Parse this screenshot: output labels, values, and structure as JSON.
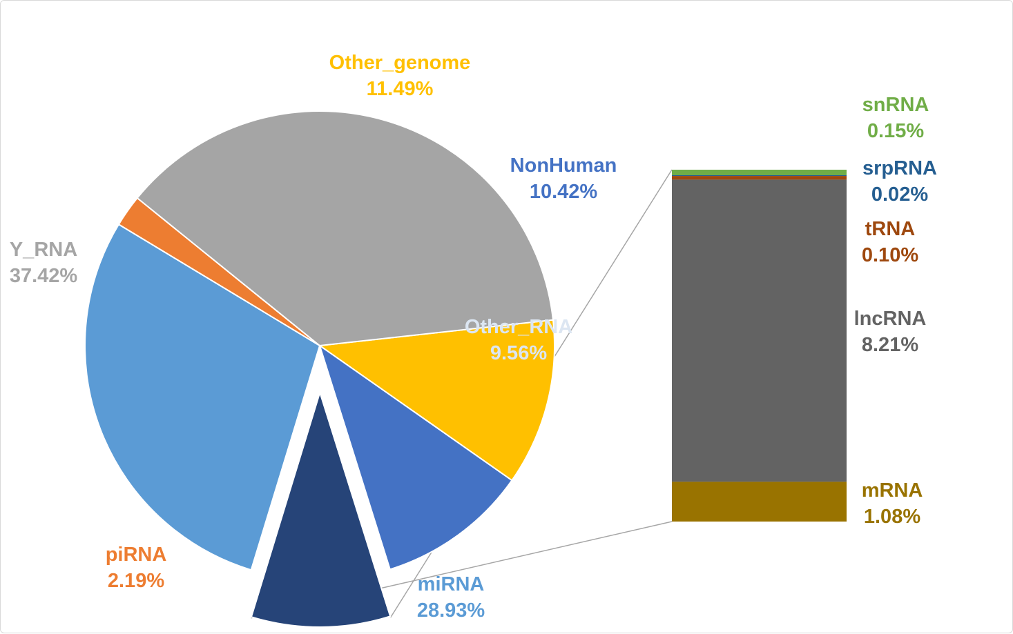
{
  "chart_data": {
    "type": "bar-of-pie",
    "pie": {
      "slices": [
        {
          "name": "Other_genome",
          "value": 11.49,
          "label": "11.49%",
          "color": "#FFC000",
          "label_color": "#FFC000"
        },
        {
          "name": "NonHuman",
          "value": 10.42,
          "label": "10.42%",
          "color": "#4472C4",
          "label_color": "#4472C4"
        },
        {
          "name": "Other_RNA",
          "value": 9.56,
          "label": "9.56%",
          "color": "#264478",
          "label_color": "#DCE6F2",
          "exploded": true
        },
        {
          "name": "miRNA",
          "value": 28.93,
          "label": "28.93%",
          "color": "#5B9BD5",
          "label_color": "#5B9BD5"
        },
        {
          "name": "piRNA",
          "value": 2.19,
          "label": "2.19%",
          "color": "#ED7D31",
          "label_color": "#ED7D31"
        },
        {
          "name": "Y_RNA",
          "value": 37.42,
          "label": "37.42%",
          "color": "#A5A5A5",
          "label_color": "#A5A5A5"
        }
      ]
    },
    "bar": {
      "breakdown_of": "Other_RNA",
      "segments": [
        {
          "name": "snRNA",
          "value": 0.15,
          "label": "0.15%",
          "color": "#70AD47",
          "label_color": "#70AD47"
        },
        {
          "name": "srpRNA",
          "value": 0.02,
          "label": "0.02%",
          "color": "#255E91",
          "label_color": "#255E91"
        },
        {
          "name": "tRNA",
          "value": 0.1,
          "label": "0.10%",
          "color": "#9E480E",
          "label_color": "#9E480E"
        },
        {
          "name": "lncRNA",
          "value": 8.21,
          "label": "8.21%",
          "color": "#636363",
          "label_color": "#636363"
        },
        {
          "name": "mRNA",
          "value": 1.08,
          "label": "1.08%",
          "color": "#997300",
          "label_color": "#997300"
        }
      ]
    },
    "connector_color": "#A6A6A6"
  }
}
